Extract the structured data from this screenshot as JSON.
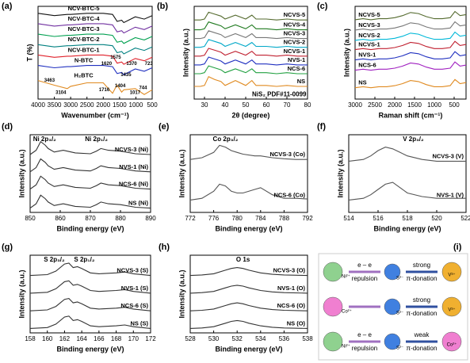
{
  "chart_data": [
    {
      "type": "line",
      "label": "(a)",
      "xlabel": "Wavenumber (cm⁻¹)",
      "ylabel": "T (%)",
      "xlim": [
        4000,
        500
      ],
      "ylim": [
        0,
        8
      ],
      "xticks": [
        4000,
        3500,
        3000,
        2500,
        2000,
        1500,
        1000,
        500
      ],
      "x": [
        4000,
        3500,
        3104,
        3000,
        2500,
        2000,
        1716,
        1620,
        1575,
        1435,
        1370,
        1017,
        744,
        500
      ],
      "series": [
        {
          "name": "NCV-BTC-5",
          "color": "#111111",
          "values": [
            7.4,
            7.2,
            7.3,
            7.3,
            7.4,
            7.4,
            7.3,
            6.9,
            6.7,
            6.8,
            6.6,
            7.1,
            6.9,
            7.2
          ]
        },
        {
          "name": "NCV-BTC-4",
          "color": "#7030a0",
          "values": [
            6.5,
            6.3,
            6.4,
            6.4,
            6.5,
            6.5,
            6.4,
            6.0,
            5.8,
            5.9,
            5.7,
            6.2,
            6.0,
            6.3
          ]
        },
        {
          "name": "NCV-BTC-3",
          "color": "#00a050",
          "values": [
            5.6,
            5.4,
            5.5,
            5.5,
            5.6,
            5.6,
            5.5,
            5.1,
            4.9,
            5.0,
            4.8,
            5.3,
            5.1,
            5.4
          ]
        },
        {
          "name": "NCV-BTC-2",
          "color": "#008080",
          "values": [
            4.7,
            4.5,
            4.6,
            4.6,
            4.7,
            4.7,
            4.6,
            4.2,
            4.0,
            4.1,
            3.9,
            4.4,
            4.2,
            4.5
          ]
        },
        {
          "name": "NCV-BTC-1",
          "color": "#e0202a",
          "values": [
            3.8,
            3.6,
            3.7,
            3.7,
            3.8,
            3.8,
            3.7,
            3.3,
            3.1,
            3.2,
            3.0,
            3.5,
            3.3,
            3.6
          ]
        },
        {
          "name": "N-BTC",
          "color": "#2030c0",
          "values": [
            2.9,
            2.7,
            2.8,
            2.8,
            2.9,
            2.9,
            2.8,
            2.4,
            2.2,
            2.3,
            2.1,
            2.6,
            2.4,
            2.7
          ]
        },
        {
          "name": "H₂BTC",
          "color": "#e08a20",
          "values": [
            1.6,
            1.2,
            0.9,
            1.1,
            1.4,
            1.4,
            0.5,
            1.0,
            1.2,
            0.6,
            0.8,
            0.9,
            0.4,
            0.8
          ]
        }
      ],
      "annotations": [
        "3463",
        "3104",
        "1716",
        "1620",
        "1575",
        "1435",
        "1404",
        "1370",
        "1017",
        "744",
        "723"
      ]
    },
    {
      "type": "line",
      "label": "(b)",
      "xlabel": "2θ (degree)",
      "ylabel": "Intensity (a.u.)",
      "xlim": [
        25,
        80
      ],
      "ylim": [
        0,
        9.5
      ],
      "xticks": [
        30,
        40,
        50,
        60,
        70,
        80
      ],
      "x": [
        25,
        28,
        30,
        32,
        35,
        38,
        40,
        45,
        50,
        53,
        55,
        60,
        65,
        70,
        75,
        80
      ],
      "series": [
        {
          "name": "NCVS-5",
          "color": "#556b2f",
          "values": [
            8.1,
            8.1,
            8.2,
            8.9,
            8.7,
            8.5,
            8.2,
            8.6,
            8.2,
            8.6,
            8.2,
            8.2,
            8.1,
            8.2,
            8.1,
            8.1
          ]
        },
        {
          "name": "NCVS-4",
          "color": "#1f7a1f",
          "values": [
            7.1,
            7.1,
            7.2,
            7.9,
            7.7,
            7.5,
            7.2,
            7.6,
            7.2,
            7.6,
            7.2,
            7.2,
            7.1,
            7.2,
            7.1,
            7.1
          ]
        },
        {
          "name": "NCVS-3",
          "color": "#777777",
          "values": [
            6.2,
            6.2,
            6.3,
            7.0,
            6.8,
            6.6,
            6.3,
            6.7,
            6.3,
            6.7,
            6.3,
            6.3,
            6.2,
            6.3,
            6.2,
            6.2
          ]
        },
        {
          "name": "NCVS-2",
          "color": "#00a8c8",
          "values": [
            5.3,
            5.3,
            5.4,
            6.1,
            5.9,
            5.7,
            5.4,
            5.8,
            5.4,
            5.8,
            5.4,
            5.4,
            5.3,
            5.4,
            5.3,
            5.3
          ]
        },
        {
          "name": "NCVS-1",
          "color": "#c02030",
          "values": [
            4.4,
            4.4,
            4.5,
            5.2,
            5.0,
            4.8,
            4.5,
            4.9,
            4.5,
            4.9,
            4.5,
            4.5,
            4.4,
            4.5,
            4.4,
            4.4
          ]
        },
        {
          "name": "NVS-1",
          "color": "#2030c0",
          "values": [
            3.5,
            3.5,
            3.6,
            4.3,
            4.1,
            3.9,
            3.6,
            4.0,
            3.6,
            4.0,
            3.6,
            3.6,
            3.5,
            3.6,
            3.5,
            3.5
          ]
        },
        {
          "name": "NCS-6",
          "color": "#20a040",
          "values": [
            2.6,
            2.6,
            2.7,
            3.4,
            3.2,
            3.0,
            2.7,
            3.1,
            2.7,
            3.1,
            2.7,
            2.7,
            2.6,
            2.7,
            2.6,
            2.6
          ]
        },
        {
          "name": "NS",
          "color": "#e08a20",
          "values": [
            1.3,
            1.3,
            1.4,
            2.3,
            2.0,
            1.8,
            1.4,
            1.9,
            1.4,
            1.9,
            1.4,
            1.4,
            1.3,
            1.4,
            1.3,
            1.3
          ]
        }
      ],
      "annotations": [
        "NiS₂ PDF#11-0099"
      ]
    },
    {
      "type": "line",
      "label": "(c)",
      "xlabel": "Raman shift (cm⁻¹)",
      "ylabel": "Intensity (a.u.)",
      "xlim": [
        3000,
        200
      ],
      "ylim": [
        0,
        9
      ],
      "xticks": [
        3000,
        2500,
        2000,
        1500,
        1000,
        500
      ],
      "x": [
        3000,
        2800,
        2600,
        2400,
        2200,
        2000,
        1800,
        1600,
        1400,
        1200,
        1000,
        800,
        600,
        480,
        350,
        200
      ],
      "series": [
        {
          "name": "NCVS-5",
          "color": "#556b2f",
          "values": [
            7.7,
            7.8,
            7.7,
            7.8,
            7.8,
            7.9,
            8.1,
            8.4,
            8.3,
            8.0,
            7.8,
            7.8,
            7.9,
            8.5,
            8.1,
            8.2
          ]
        },
        {
          "name": "NCVS-3",
          "color": "#777777",
          "values": [
            6.7,
            6.8,
            6.7,
            6.8,
            6.8,
            6.9,
            7.1,
            7.4,
            7.3,
            7.0,
            6.8,
            6.8,
            6.9,
            7.5,
            7.1,
            7.2
          ]
        },
        {
          "name": "NCVS-2",
          "color": "#00b8d8",
          "values": [
            5.7,
            5.8,
            5.7,
            5.8,
            5.8,
            5.9,
            6.1,
            6.4,
            6.3,
            6.0,
            5.8,
            5.8,
            5.9,
            6.5,
            6.1,
            6.2
          ]
        },
        {
          "name": "NCVS-1",
          "color": "#c02030",
          "values": [
            4.8,
            4.9,
            4.8,
            4.9,
            4.9,
            5.0,
            5.2,
            5.5,
            5.4,
            5.1,
            4.9,
            4.9,
            5.0,
            5.6,
            5.2,
            5.3
          ]
        },
        {
          "name": "NVS-1",
          "color": "#2030c0",
          "values": [
            3.8,
            3.9,
            3.8,
            3.9,
            3.9,
            4.0,
            4.2,
            4.5,
            4.4,
            4.1,
            3.9,
            3.9,
            4.0,
            4.6,
            4.2,
            4.3
          ]
        },
        {
          "name": "NCS-6",
          "color": "#a020c0",
          "values": [
            2.8,
            2.9,
            2.8,
            2.9,
            2.9,
            3.0,
            3.2,
            3.5,
            3.4,
            3.1,
            2.9,
            2.9,
            3.0,
            3.6,
            3.2,
            3.3
          ]
        },
        {
          "name": "NS",
          "color": "#e08a20",
          "values": [
            1.1,
            1.2,
            1.1,
            1.2,
            1.2,
            1.3,
            1.5,
            1.8,
            1.7,
            1.4,
            1.2,
            1.2,
            1.3,
            1.9,
            1.5,
            1.6
          ]
        }
      ]
    },
    {
      "type": "line",
      "label": "(d)",
      "xlabel": "Binding energy (eV)",
      "ylabel": "Intensity (a.u.)",
      "xlim": [
        850,
        890
      ],
      "ylim": [
        0,
        4.5
      ],
      "xticks": [
        850,
        860,
        870,
        880,
        890
      ],
      "x": [
        850,
        852,
        853.5,
        855,
        856,
        858,
        861,
        865,
        870,
        872,
        873.5,
        876,
        880,
        885,
        890
      ],
      "series": [
        {
          "name": "NCVS-3 (Ni)",
          "color": "#333333",
          "values": [
            3.35,
            3.6,
            4.1,
            3.9,
            3.7,
            3.5,
            3.6,
            3.45,
            3.4,
            3.55,
            3.7,
            3.6,
            3.55,
            3.4,
            3.35
          ]
        },
        {
          "name": "NVS-1 (Ni)",
          "color": "#333333",
          "values": [
            2.35,
            2.6,
            3.1,
            2.9,
            2.7,
            2.5,
            2.6,
            2.45,
            2.4,
            2.55,
            2.7,
            2.6,
            2.55,
            2.4,
            2.35
          ]
        },
        {
          "name": "NCS-6 (Ni)",
          "color": "#333333",
          "values": [
            1.35,
            1.6,
            2.1,
            1.9,
            1.7,
            1.5,
            1.6,
            1.45,
            1.4,
            1.55,
            1.7,
            1.6,
            1.55,
            1.4,
            1.35
          ]
        },
        {
          "name": "NS (Ni)",
          "color": "#333333",
          "values": [
            0.25,
            0.5,
            1.0,
            0.8,
            0.6,
            0.4,
            0.5,
            0.35,
            0.3,
            0.45,
            0.6,
            0.5,
            0.45,
            0.3,
            0.25
          ]
        }
      ],
      "annotations": [
        "Ni 2p₃/₂",
        "Ni 2p₁/₂"
      ]
    },
    {
      "type": "line",
      "label": "(e)",
      "xlabel": "Binding energy (eV)",
      "ylabel": "Intensity (a.u.)",
      "xlim": [
        772,
        792
      ],
      "ylim": [
        0,
        2.2
      ],
      "xticks": [
        772,
        776,
        780,
        784,
        788,
        792
      ],
      "x": [
        772,
        774,
        776,
        777,
        778,
        779,
        780,
        781,
        783,
        784,
        786,
        788,
        790,
        792
      ],
      "series": [
        {
          "name": "NCVS-3 (Co)",
          "color": "#555555",
          "values": [
            1.5,
            1.55,
            1.7,
            1.9,
            1.85,
            1.75,
            1.7,
            1.65,
            1.6,
            1.6,
            1.55,
            1.52,
            1.5,
            1.5
          ]
        },
        {
          "name": "NCS-6 (Co)",
          "color": "#555555",
          "values": [
            0.35,
            0.4,
            0.6,
            0.8,
            0.75,
            0.6,
            0.55,
            0.55,
            0.65,
            0.7,
            0.5,
            0.4,
            0.4,
            0.38
          ]
        }
      ],
      "annotations": [
        "Co 2p₃/₂"
      ]
    },
    {
      "type": "line",
      "label": "(f)",
      "xlabel": "Binding energy (eV)",
      "ylabel": "Intensity (a.u.)",
      "xlim": [
        514,
        522
      ],
      "ylim": [
        0,
        2.2
      ],
      "xticks": [
        514,
        516,
        518,
        520,
        522
      ],
      "x": [
        514,
        515,
        515.5,
        516,
        516.5,
        517,
        517.5,
        518,
        519,
        520,
        521,
        522
      ],
      "series": [
        {
          "name": "NCVS-3 (V)",
          "color": "#555555",
          "values": [
            1.45,
            1.5,
            1.6,
            1.75,
            1.85,
            1.8,
            1.7,
            1.6,
            1.5,
            1.45,
            1.45,
            1.45
          ]
        },
        {
          "name": "NVS-1 (V)",
          "color": "#555555",
          "values": [
            0.35,
            0.4,
            0.5,
            0.65,
            0.8,
            0.85,
            0.7,
            0.55,
            0.45,
            0.4,
            0.4,
            0.4
          ]
        }
      ],
      "annotations": [
        "V 2p₃/₂"
      ]
    },
    {
      "type": "line",
      "label": "(g)",
      "xlabel": "Binding energy (eV)",
      "ylabel": "Intensity (a.u.)",
      "xlim": [
        158,
        172
      ],
      "ylim": [
        0,
        4.4
      ],
      "xticks": [
        158,
        160,
        162,
        164,
        166,
        168,
        170,
        172
      ],
      "x": [
        158,
        160,
        161,
        162,
        162.5,
        163,
        163.5,
        164,
        165,
        166,
        168,
        169,
        170,
        172
      ],
      "series": [
        {
          "name": "NCVS-3 (S)",
          "color": "#333333",
          "values": [
            3.25,
            3.3,
            3.5,
            3.9,
            3.95,
            3.7,
            3.75,
            3.65,
            3.4,
            3.35,
            3.4,
            3.45,
            3.35,
            3.25
          ]
        },
        {
          "name": "NVS-1 (S)",
          "color": "#333333",
          "values": [
            2.25,
            2.3,
            2.5,
            2.9,
            2.95,
            2.7,
            2.75,
            2.65,
            2.4,
            2.35,
            2.4,
            2.45,
            2.35,
            2.25
          ]
        },
        {
          "name": "NCS-6 (S)",
          "color": "#333333",
          "values": [
            1.25,
            1.3,
            1.5,
            1.9,
            1.95,
            1.7,
            1.75,
            1.65,
            1.4,
            1.35,
            1.4,
            1.45,
            1.35,
            1.25
          ]
        },
        {
          "name": "NS (S)",
          "color": "#333333",
          "values": [
            0.25,
            0.3,
            0.5,
            0.9,
            0.95,
            0.7,
            0.75,
            0.65,
            0.4,
            0.35,
            0.4,
            0.45,
            0.35,
            0.25
          ]
        }
      ],
      "annotations": [
        "S 2p₃/₂",
        "S 2p₁/₂"
      ]
    },
    {
      "type": "line",
      "label": "(h)",
      "xlabel": "Binding energy (eV)",
      "ylabel": "Intensity (a.u.)",
      "xlim": [
        528,
        538
      ],
      "ylim": [
        0,
        4.4
      ],
      "xticks": [
        528,
        530,
        532,
        534,
        536,
        538
      ],
      "x": [
        528,
        529,
        530,
        531,
        531.5,
        532,
        532.5,
        533,
        534,
        535,
        536,
        538
      ],
      "series": [
        {
          "name": "NCVS-3 (O)",
          "color": "#333333",
          "values": [
            3.25,
            3.28,
            3.35,
            3.55,
            3.65,
            3.7,
            3.65,
            3.55,
            3.4,
            3.32,
            3.28,
            3.25
          ]
        },
        {
          "name": "NVS-1 (O)",
          "color": "#333333",
          "values": [
            2.25,
            2.28,
            2.35,
            2.55,
            2.65,
            2.7,
            2.65,
            2.55,
            2.4,
            2.32,
            2.28,
            2.25
          ]
        },
        {
          "name": "NCS-6 (O)",
          "color": "#333333",
          "values": [
            1.25,
            1.28,
            1.35,
            1.55,
            1.65,
            1.7,
            1.65,
            1.55,
            1.4,
            1.32,
            1.28,
            1.25
          ]
        },
        {
          "name": "NS (O)",
          "color": "#333333",
          "values": [
            0.25,
            0.28,
            0.35,
            0.55,
            0.65,
            0.7,
            0.65,
            0.55,
            0.4,
            0.32,
            0.28,
            0.25
          ]
        }
      ],
      "annotations": [
        "O 1s"
      ]
    }
  ],
  "diagram": {
    "label": "(i)",
    "rows": [
      {
        "metal": "Ni²⁺",
        "ligand": "S²⁻",
        "target": "V³⁺",
        "repulsion_top": "e – e",
        "repulsion_bottom": "repulsion",
        "donation_top": "strong",
        "donation_bottom": "π-donation"
      },
      {
        "metal": "Co²⁺",
        "ligand": "S²⁻",
        "target": "V³⁺",
        "donation_top": "strong",
        "donation_bottom": "π-donation"
      },
      {
        "metal": "Ni²⁺",
        "ligand": "S²⁻",
        "target": "Co²⁺",
        "repulsion_top": "e – e",
        "repulsion_bottom": "repulsion",
        "donation_top": "weak",
        "donation_bottom": "π-donation"
      }
    ]
  }
}
